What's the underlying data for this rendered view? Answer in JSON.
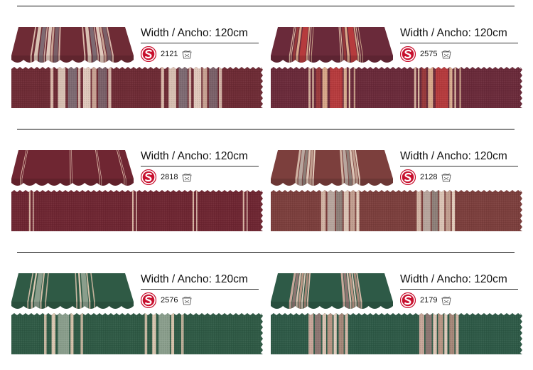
{
  "items": [
    {
      "width_label": "Width / Ancho: 120cm",
      "code": "2121",
      "base_color": "#6e2b35",
      "stripes": [
        {
          "f": 0.155,
          "w": 0.012,
          "c": "#d8b6a8"
        },
        {
          "f": 0.185,
          "w": 0.03,
          "c": "#d9c1b3"
        },
        {
          "f": 0.225,
          "w": 0.035,
          "c": "#7e6a72"
        },
        {
          "f": 0.265,
          "w": 0.01,
          "c": "#cfb0a5"
        },
        {
          "f": 0.285,
          "w": 0.03,
          "c": "#e0c9bc"
        },
        {
          "f": 0.32,
          "w": 0.018,
          "c": "#c9a394"
        },
        {
          "f": 0.345,
          "w": 0.035,
          "c": "#7a6068"
        },
        {
          "f": 0.385,
          "w": 0.012,
          "c": "#d4b3a6"
        },
        {
          "f": 0.595,
          "w": 0.012,
          "c": "#d8b6a8"
        },
        {
          "f": 0.625,
          "w": 0.03,
          "c": "#d9c1b3"
        },
        {
          "f": 0.665,
          "w": 0.035,
          "c": "#7e6a72"
        },
        {
          "f": 0.705,
          "w": 0.01,
          "c": "#cfb0a5"
        },
        {
          "f": 0.725,
          "w": 0.03,
          "c": "#e0c9bc"
        },
        {
          "f": 0.76,
          "w": 0.018,
          "c": "#c9a394"
        },
        {
          "f": 0.785,
          "w": 0.035,
          "c": "#7a6068"
        },
        {
          "f": 0.825,
          "w": 0.012,
          "c": "#d4b3a6"
        }
      ]
    },
    {
      "width_label": "Width / Ancho: 120cm",
      "code": "2575",
      "base_color": "#6a2a3a",
      "stripes": [
        {
          "f": 0.15,
          "w": 0.008,
          "c": "#d6b29e"
        },
        {
          "f": 0.165,
          "w": 0.006,
          "c": "#e3c3a8"
        },
        {
          "f": 0.18,
          "w": 0.018,
          "c": "#9a3a3c"
        },
        {
          "f": 0.205,
          "w": 0.02,
          "c": "#d9a88a"
        },
        {
          "f": 0.235,
          "w": 0.05,
          "c": "#b63b3d"
        },
        {
          "f": 0.29,
          "w": 0.012,
          "c": "#d9ad90"
        },
        {
          "f": 0.31,
          "w": 0.006,
          "c": "#e6c7ad"
        },
        {
          "f": 0.33,
          "w": 0.006,
          "c": "#caa28a"
        },
        {
          "f": 0.57,
          "w": 0.008,
          "c": "#d6b29e"
        },
        {
          "f": 0.585,
          "w": 0.006,
          "c": "#e3c3a8"
        },
        {
          "f": 0.6,
          "w": 0.018,
          "c": "#9a3a3c"
        },
        {
          "f": 0.625,
          "w": 0.02,
          "c": "#d9a88a"
        },
        {
          "f": 0.655,
          "w": 0.05,
          "c": "#b63b3d"
        },
        {
          "f": 0.71,
          "w": 0.012,
          "c": "#d9ad90"
        },
        {
          "f": 0.73,
          "w": 0.006,
          "c": "#e6c7ad"
        },
        {
          "f": 0.75,
          "w": 0.006,
          "c": "#caa28a"
        }
      ]
    },
    {
      "width_label": "Width / Ancho: 120cm",
      "code": "2818",
      "base_color": "#6f2632",
      "stripes": [
        {
          "f": 0.07,
          "w": 0.006,
          "c": "#d9b4a3"
        },
        {
          "f": 0.085,
          "w": 0.004,
          "c": "#e2c4b4"
        },
        {
          "f": 0.48,
          "w": 0.006,
          "c": "#d9b4a3"
        },
        {
          "f": 0.495,
          "w": 0.004,
          "c": "#e2c4b4"
        },
        {
          "f": 0.72,
          "w": 0.006,
          "c": "#d9b4a3"
        },
        {
          "f": 0.735,
          "w": 0.004,
          "c": "#e2c4b4"
        },
        {
          "f": 0.92,
          "w": 0.006,
          "c": "#d9b4a3"
        },
        {
          "f": 0.935,
          "w": 0.004,
          "c": "#e2c4b4"
        }
      ]
    },
    {
      "width_label": "Width / Ancho: 120cm",
      "code": "2128",
      "base_color": "#7c3f3d",
      "stripes": [
        {
          "f": 0.2,
          "w": 0.018,
          "c": "#d2b4a4"
        },
        {
          "f": 0.225,
          "w": 0.03,
          "c": "#b8a69e"
        },
        {
          "f": 0.26,
          "w": 0.025,
          "c": "#8e7f78"
        },
        {
          "f": 0.29,
          "w": 0.02,
          "c": "#dcc5b6"
        },
        {
          "f": 0.315,
          "w": 0.02,
          "c": "#c19e8f"
        },
        {
          "f": 0.34,
          "w": 0.012,
          "c": "#e3ccbc"
        },
        {
          "f": 0.58,
          "w": 0.018,
          "c": "#d2b4a4"
        },
        {
          "f": 0.605,
          "w": 0.03,
          "c": "#b8a69e"
        },
        {
          "f": 0.64,
          "w": 0.025,
          "c": "#8e7f78"
        },
        {
          "f": 0.67,
          "w": 0.02,
          "c": "#dcc5b6"
        },
        {
          "f": 0.695,
          "w": 0.02,
          "c": "#c19e8f"
        },
        {
          "f": 0.72,
          "w": 0.012,
          "c": "#e3ccbc"
        }
      ]
    },
    {
      "width_label": "Width / Ancho: 120cm",
      "code": "2576",
      "base_color": "#2f5a45",
      "stripes": [
        {
          "f": 0.13,
          "w": 0.01,
          "c": "#c9b8a2"
        },
        {
          "f": 0.16,
          "w": 0.015,
          "c": "#dac7b1"
        },
        {
          "f": 0.185,
          "w": 0.045,
          "c": "#8a9e8c"
        },
        {
          "f": 0.235,
          "w": 0.012,
          "c": "#d6c2ab"
        },
        {
          "f": 0.275,
          "w": 0.01,
          "c": "#c0b09a"
        },
        {
          "f": 0.53,
          "w": 0.01,
          "c": "#c9b8a2"
        },
        {
          "f": 0.56,
          "w": 0.015,
          "c": "#dac7b1"
        },
        {
          "f": 0.585,
          "w": 0.045,
          "c": "#8a9e8c"
        },
        {
          "f": 0.635,
          "w": 0.012,
          "c": "#d6c2ab"
        },
        {
          "f": 0.675,
          "w": 0.01,
          "c": "#c0b09a"
        }
      ]
    },
    {
      "width_label": "Width / Ancho: 120cm",
      "code": "2179",
      "base_color": "#2e5a47",
      "stripes": [
        {
          "f": 0.15,
          "w": 0.02,
          "c": "#c8a79a"
        },
        {
          "f": 0.175,
          "w": 0.025,
          "c": "#8e7672"
        },
        {
          "f": 0.205,
          "w": 0.015,
          "c": "#dcc3b3"
        },
        {
          "f": 0.225,
          "w": 0.02,
          "c": "#b99584"
        },
        {
          "f": 0.25,
          "w": 0.012,
          "c": "#e1cbbc"
        },
        {
          "f": 0.27,
          "w": 0.02,
          "c": "#a68778"
        },
        {
          "f": 0.295,
          "w": 0.012,
          "c": "#d6b9a9"
        },
        {
          "f": 0.59,
          "w": 0.02,
          "c": "#c8a79a"
        },
        {
          "f": 0.615,
          "w": 0.025,
          "c": "#8e7672"
        },
        {
          "f": 0.645,
          "w": 0.015,
          "c": "#dcc3b3"
        },
        {
          "f": 0.665,
          "w": 0.02,
          "c": "#b99584"
        },
        {
          "f": 0.69,
          "w": 0.012,
          "c": "#e1cbbc"
        },
        {
          "f": 0.71,
          "w": 0.02,
          "c": "#a68778"
        },
        {
          "f": 0.735,
          "w": 0.012,
          "c": "#d6b9a9"
        }
      ]
    }
  ],
  "colors": {
    "logo_red": "#c8102e",
    "rule": "#111111"
  },
  "icons": {
    "brand_logo": "s-circle-logo",
    "care_symbol": "wash-care-icon"
  }
}
